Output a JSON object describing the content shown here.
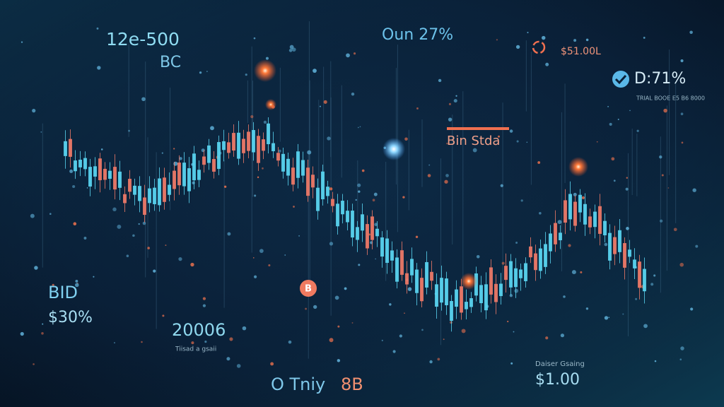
{
  "header": {
    "top_left_value": "12e-500",
    "top_left_sub": "BC",
    "top_center": "Oun 27%",
    "top_right_price": "$51.00L",
    "right_percent": "D:71%",
    "right_small": "TRIAL BOOE E5 B6 8000",
    "center_tag": "Bin Stda"
  },
  "footer": {
    "bid_label": "BID",
    "bid_value": "$30%",
    "count": "20006",
    "count_sub": "Tiisad a gsaii",
    "ticker": "O Tniy",
    "ticker_value": "8B",
    "price_label": "Daiser Gsaing",
    "price": "$1.00",
    "coin": "B"
  }
}
